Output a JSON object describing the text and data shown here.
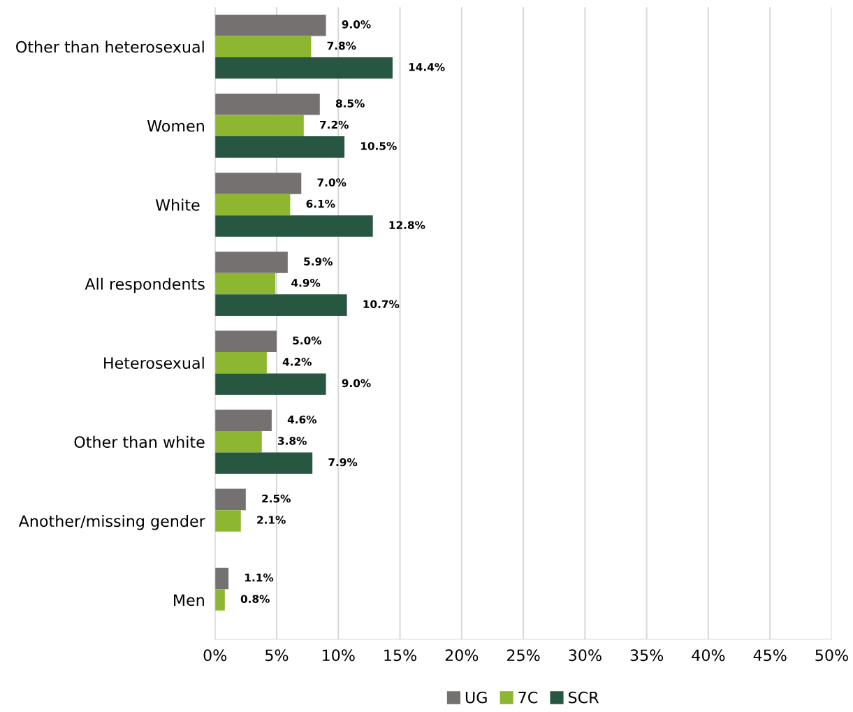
{
  "chart_data": {
    "type": "bar",
    "orientation": "horizontal",
    "categories": [
      "Other than heterosexual",
      "Women",
      "White ",
      "All respondents",
      "Heterosexual",
      "Other than white",
      "Another/missing gender",
      "Men"
    ],
    "series": [
      {
        "name": "UG",
        "color": "#767171",
        "values": [
          9.0,
          8.5,
          7.0,
          5.9,
          5.0,
          4.6,
          2.5,
          1.1
        ],
        "value_labels": [
          "9.0%",
          "8.5%",
          "7.0%",
          "5.9%",
          "5.0%",
          "4.6%",
          "2.5%",
          "1.1%"
        ]
      },
      {
        "name": "7C",
        "color": "#8db631",
        "values": [
          7.8,
          7.2,
          6.1,
          4.9,
          4.2,
          3.8,
          2.1,
          0.8
        ],
        "value_labels": [
          "7.8%",
          "7.2%",
          "6.1%",
          "4.9%",
          "4.2%",
          "3.8%",
          "2.1%",
          "0.8%"
        ]
      },
      {
        "name": "SCR",
        "color": "#275741",
        "values": [
          14.4,
          10.5,
          12.8,
          10.7,
          9.0,
          7.9,
          null,
          null
        ],
        "value_labels": [
          "14.4%",
          "10.5%",
          "12.8%",
          "10.7%",
          "9.0%",
          "7.9%",
          null,
          null
        ]
      }
    ],
    "xlim": [
      0,
      50
    ],
    "xticks": [
      {
        "value": 0,
        "label": "0%"
      },
      {
        "value": 5,
        "label": "5%"
      },
      {
        "value": 10,
        "label": "10%"
      },
      {
        "value": 15,
        "label": "15%"
      },
      {
        "value": 20,
        "label": "20%"
      },
      {
        "value": 25,
        "label": "25%"
      },
      {
        "value": 30,
        "label": "30%"
      },
      {
        "value": 35,
        "label": "35%"
      },
      {
        "value": 40,
        "label": "40%"
      },
      {
        "value": 45,
        "label": "45%"
      },
      {
        "value": 50,
        "label": "50%"
      }
    ],
    "grid": "x",
    "legend": "bottom"
  }
}
